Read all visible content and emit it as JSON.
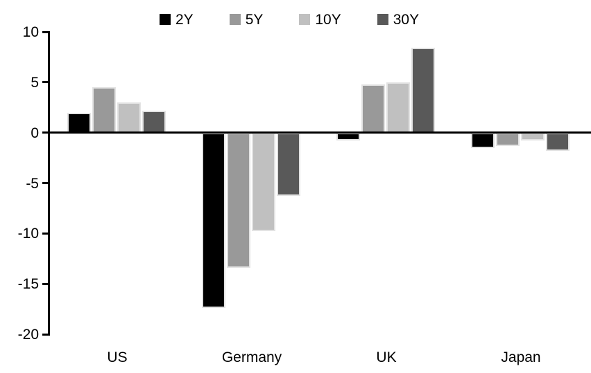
{
  "chart_data": {
    "type": "bar",
    "title": "",
    "xlabel": "",
    "ylabel": "",
    "categories": [
      "US",
      "Germany",
      "UK",
      "Japan"
    ],
    "series": [
      {
        "name": "2Y",
        "color": "#000000",
        "values": [
          2.0,
          -17.4,
          -0.8,
          -1.5
        ]
      },
      {
        "name": "5Y",
        "color": "#999999",
        "values": [
          4.5,
          -13.4,
          4.8,
          -1.3
        ]
      },
      {
        "name": "10Y",
        "color": "#C0C0C0",
        "values": [
          3.0,
          -9.8,
          5.0,
          -0.8
        ]
      },
      {
        "name": "30Y",
        "color": "#595959",
        "values": [
          2.2,
          -6.3,
          8.4,
          -1.8
        ]
      }
    ],
    "ylim": [
      -20,
      10
    ],
    "yticks": [
      10,
      5,
      0,
      -5,
      -10,
      -15,
      -20
    ],
    "grid": false,
    "legend_position": "top",
    "colors": {
      "axis": "#000000",
      "bar_outline": "#E3E3E3",
      "background": "#FFFFFF",
      "text": "#000000"
    }
  }
}
